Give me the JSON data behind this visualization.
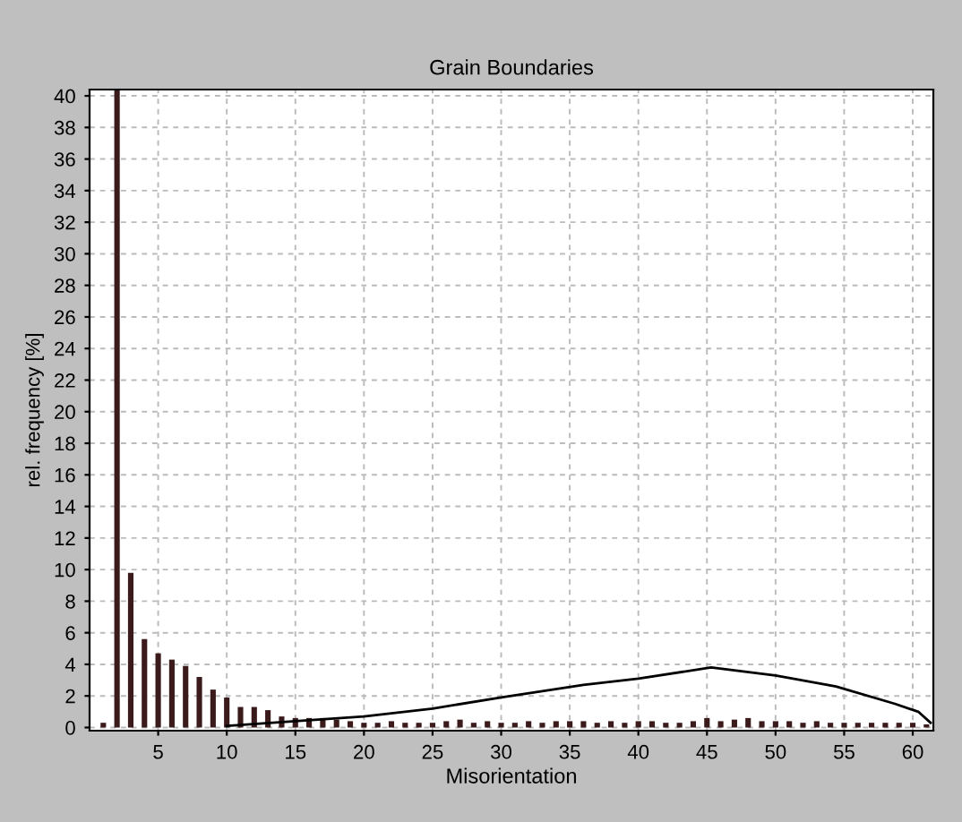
{
  "chart_data": {
    "type": "bar",
    "title": "Grain Boundaries",
    "xlabel": "Misorientation",
    "ylabel": "rel. frequency [%]",
    "xlim": [
      0,
      61.5
    ],
    "xticks": [
      5,
      10,
      15,
      20,
      25,
      30,
      35,
      40,
      45,
      50,
      55,
      60
    ],
    "ylim": [
      -0.2,
      40.4
    ],
    "yticks": [
      0,
      2,
      4,
      6,
      8,
      10,
      12,
      14,
      16,
      18,
      20,
      22,
      24,
      26,
      28,
      30,
      32,
      34,
      36,
      38,
      40
    ],
    "grid": true,
    "legend": false,
    "series": [
      {
        "color": "#3a1a1a",
        "x": [
          1,
          2,
          3,
          4,
          5,
          6,
          7,
          8,
          9,
          10,
          11,
          12,
          13,
          14,
          15,
          16,
          17,
          18,
          19,
          20,
          21,
          22,
          23,
          24,
          25,
          26,
          27,
          28,
          29,
          30,
          31,
          32,
          33,
          34,
          35,
          36,
          37,
          38,
          39,
          40,
          41,
          42,
          43,
          44,
          45,
          46,
          47,
          48,
          49,
          50,
          51,
          52,
          53,
          54,
          55,
          56,
          57,
          58,
          59,
          60,
          61
        ],
        "values": [
          0.3,
          40.4,
          9.8,
          5.6,
          4.7,
          4.3,
          3.9,
          3.2,
          2.4,
          1.9,
          1.3,
          1.3,
          1.1,
          0.7,
          0.6,
          0.6,
          0.6,
          0.5,
          0.4,
          0.3,
          0.3,
          0.4,
          0.3,
          0.3,
          0.3,
          0.4,
          0.5,
          0.3,
          0.4,
          0.3,
          0.3,
          0.4,
          0.3,
          0.4,
          0.4,
          0.4,
          0.3,
          0.4,
          0.3,
          0.4,
          0.4,
          0.3,
          0.3,
          0.4,
          0.6,
          0.4,
          0.5,
          0.6,
          0.4,
          0.4,
          0.4,
          0.3,
          0.4,
          0.3,
          0.3,
          0.3,
          0.3,
          0.3,
          0.3,
          0.3,
          0.2
        ]
      },
      {
        "type": "line",
        "color": "#000000",
        "x": [
          10,
          15,
          20,
          25,
          30,
          36,
          40,
          45.3,
          50,
          54.4,
          58.7,
          60.4,
          61.3
        ],
        "values": [
          0.1,
          0.4,
          0.7,
          1.2,
          1.9,
          2.7,
          3.1,
          3.8,
          3.3,
          2.6,
          1.5,
          1.0,
          0.3
        ]
      }
    ]
  }
}
